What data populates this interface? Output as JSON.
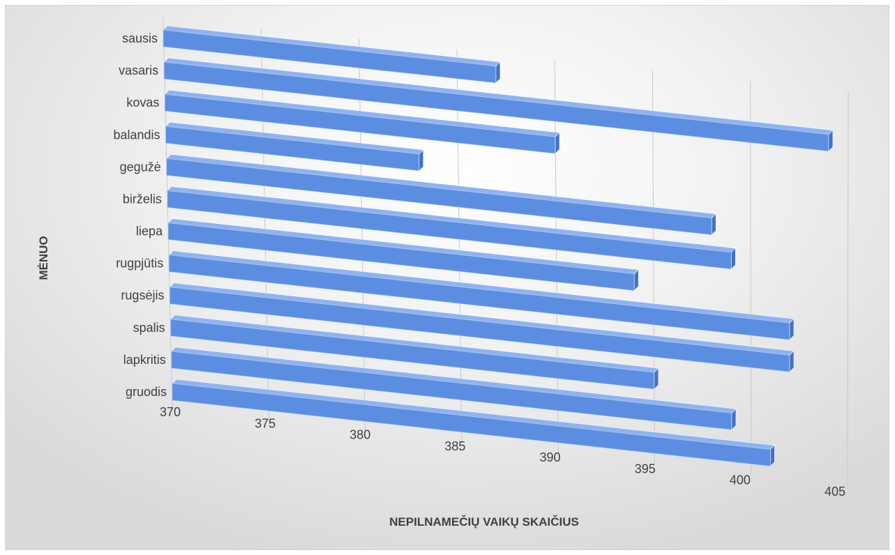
{
  "chart_data": {
    "type": "bar",
    "orientation": "horizontal",
    "style": "3d",
    "categories": [
      "sausis",
      "vasaris",
      "kovas",
      "balandis",
      "gegužė",
      "birželis",
      "liepa",
      "rugpjūtis",
      "rugsėjis",
      "spalis",
      "lapkritis",
      "gruodis"
    ],
    "values": [
      387,
      404,
      390,
      383,
      398,
      399,
      394,
      402,
      402,
      395,
      399,
      401
    ],
    "xlabel": "NEPILNAMEČIŲ VAIKŲ SKAIČIUS",
    "ylabel": "MĖNUO",
    "xlim": [
      370,
      405
    ],
    "xticks": [
      "370",
      "375",
      "380",
      "385",
      "390",
      "395",
      "400",
      "405"
    ],
    "grid": true,
    "legend": "none",
    "colors": {
      "bar": "#5b8ee0",
      "bar_top": "#8fb3f0",
      "bar_side": "#4472c4",
      "grid": "#c8c8c8",
      "text": "#404040"
    }
  }
}
